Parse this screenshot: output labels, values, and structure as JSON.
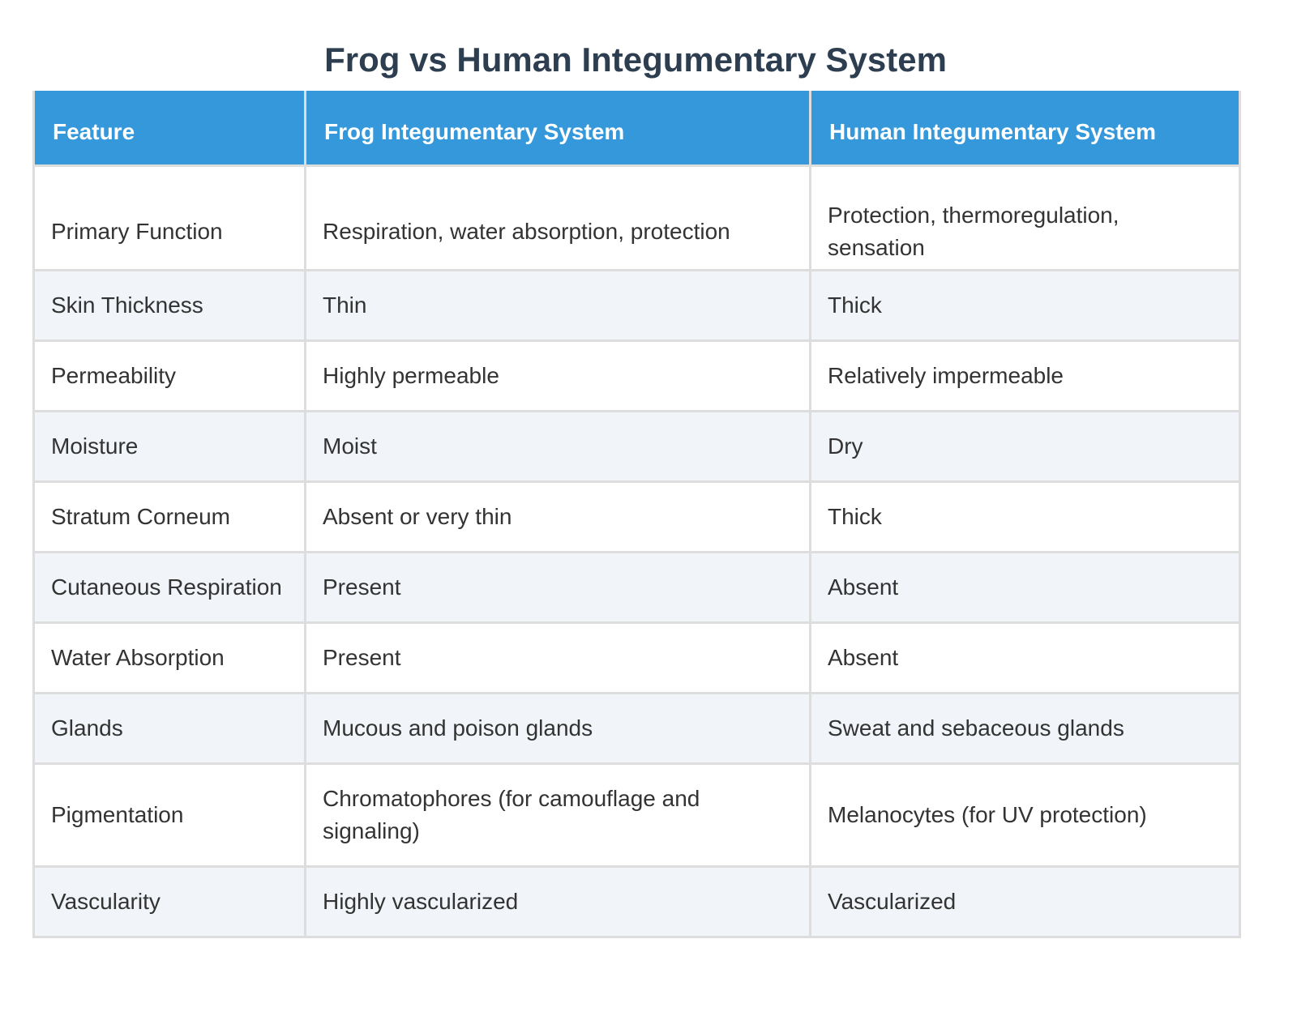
{
  "header": {
    "title": "Frog vs Human Integumentary System"
  },
  "table": {
    "columns": [
      "Feature",
      "Frog Integumentary System",
      "Human Integumentary System"
    ],
    "rows": [
      [
        "Primary Function",
        "Respiration, water absorption, protection",
        "Protection, thermoregulation, sensation"
      ],
      [
        "Skin Thickness",
        "Thin",
        "Thick"
      ],
      [
        "Permeability",
        "Highly permeable",
        "Relatively impermeable"
      ],
      [
        "Moisture",
        "Moist",
        "Dry"
      ],
      [
        "Stratum Corneum",
        "Absent or very thin",
        "Thick"
      ],
      [
        "Cutaneous Respiration",
        "Present",
        "Absent"
      ],
      [
        "Water Absorption",
        "Present",
        "Absent"
      ],
      [
        "Glands",
        "Mucous and poison glands",
        "Sweat and sebaceous glands"
      ],
      [
        "Pigmentation",
        "Chromatophores (for camouflage and signaling)",
        "Melanocytes (for UV protection)"
      ],
      [
        "Vascularity",
        "Highly vascularized",
        "Vascularized"
      ]
    ]
  }
}
